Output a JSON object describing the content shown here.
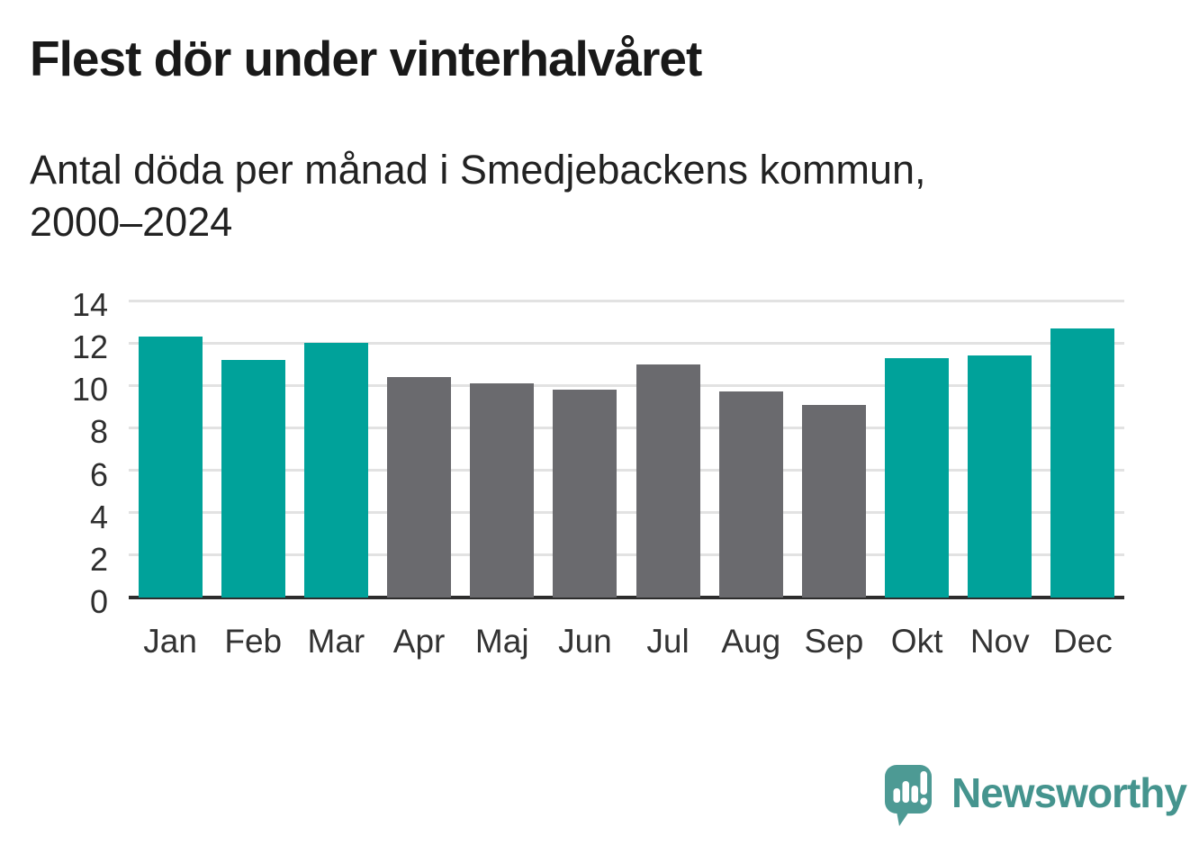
{
  "title": "Flest dör under vinterhalvåret",
  "subtitle": {
    "lines": [
      "Antal döda per månad i Smedjebackens kommun,",
      "2000–2024"
    ]
  },
  "chart_data": {
    "type": "bar",
    "title": "Flest dör under vinterhalvåret",
    "subtitle": "Antal döda per månad i Smedjebackens kommun, 2000–2024",
    "categories": [
      "Jan",
      "Feb",
      "Mar",
      "Apr",
      "Maj",
      "Jun",
      "Jul",
      "Aug",
      "Sep",
      "Okt",
      "Nov",
      "Dec"
    ],
    "values": [
      12.3,
      11.2,
      12.0,
      10.4,
      10.1,
      9.8,
      11.0,
      9.7,
      9.1,
      11.3,
      11.4,
      12.7
    ],
    "bar_colors": [
      "#00a29a",
      "#00a29a",
      "#00a29a",
      "#6a6a6e",
      "#6a6a6e",
      "#6a6a6e",
      "#6a6a6e",
      "#6a6a6e",
      "#6a6a6e",
      "#00a29a",
      "#00a29a",
      "#00a29a"
    ],
    "highlight_color": "#00a29a",
    "base_color": "#6a6a6e",
    "xlabel": "",
    "ylabel": "",
    "ylim": [
      0,
      14
    ],
    "y_ticks": [
      0,
      2,
      4,
      6,
      8,
      10,
      12,
      14
    ],
    "grid": "horizontal",
    "gridline_color": "#e2e2e2",
    "axis_color": "#2d2d2d",
    "legend": "none"
  },
  "branding": {
    "logo_text": "Newsworthy",
    "logo_icon": "newsworthy-speech-bubble-bar-chart-icon",
    "logo_text_color": "#45948e",
    "logo_bubble_color": "#4d9a94"
  }
}
